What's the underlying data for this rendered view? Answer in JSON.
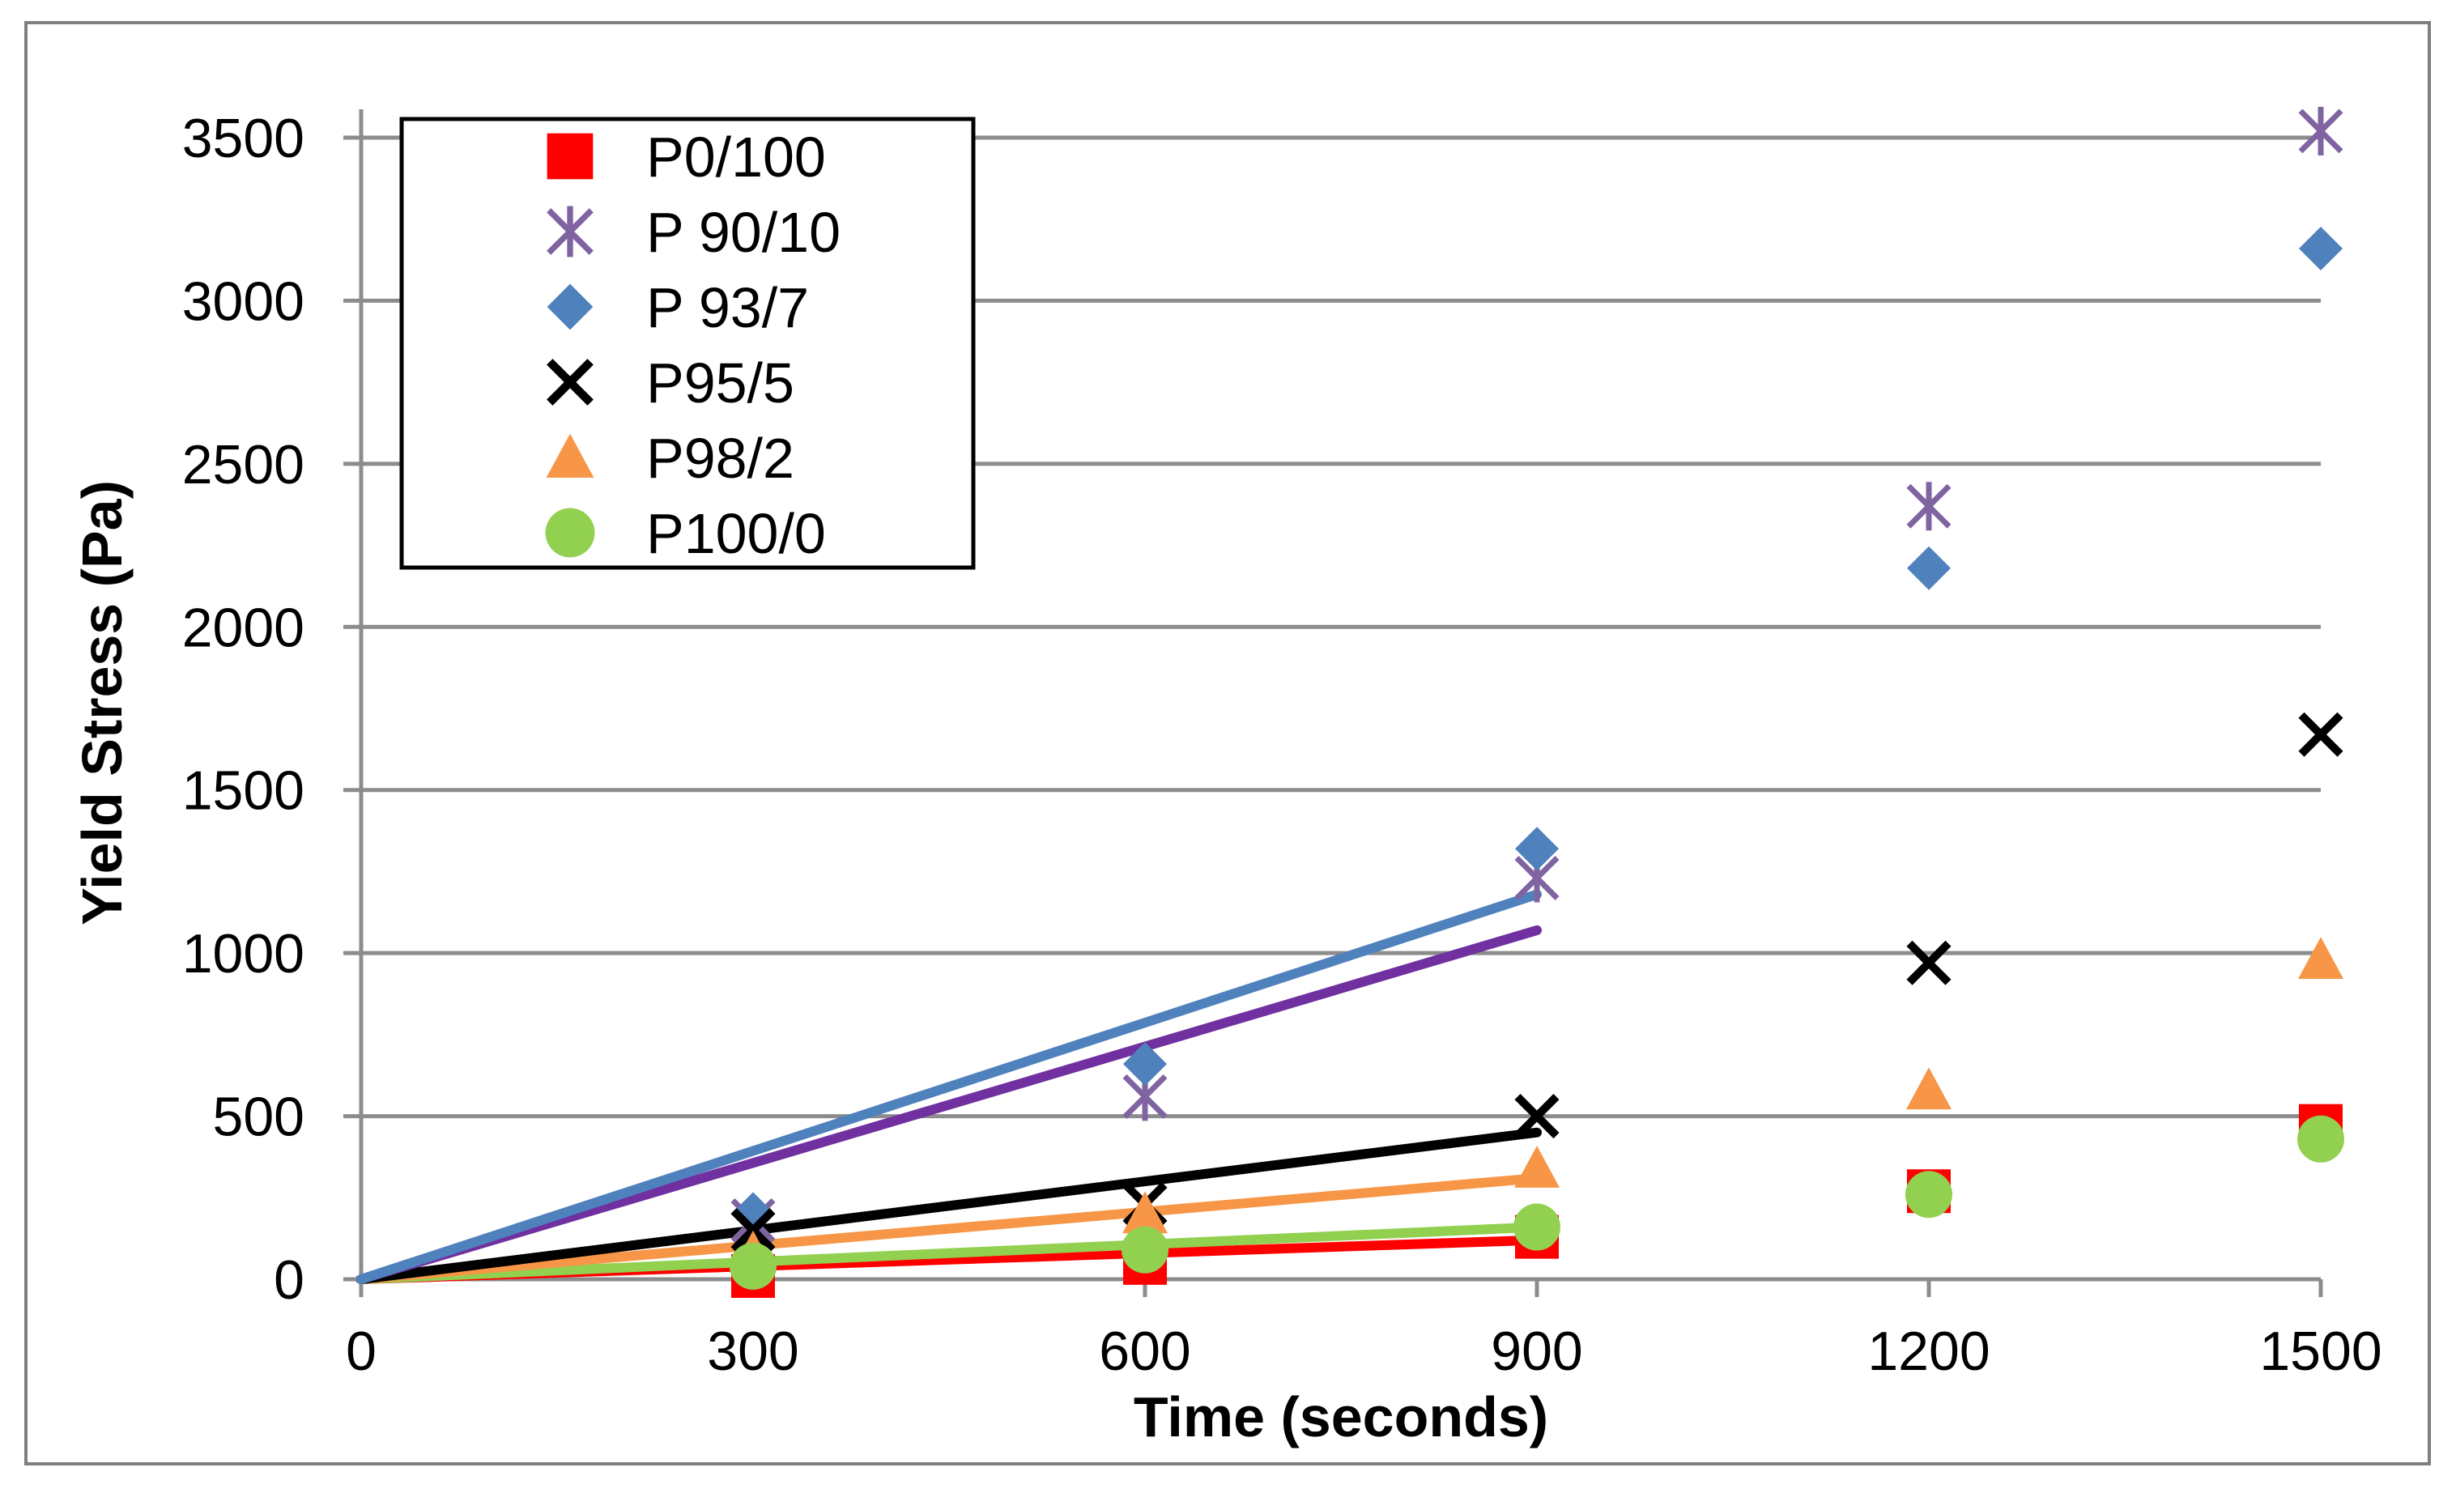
{
  "chart_data": {
    "type": "scatter",
    "title": "",
    "xlabel": "Time (seconds)",
    "ylabel": "Yield Stress (Pa)",
    "xlim": [
      0,
      1500
    ],
    "ylim": [
      0,
      3500
    ],
    "xticks": [
      0,
      300,
      600,
      900,
      1200,
      1500
    ],
    "yticks": [
      0,
      500,
      1000,
      1500,
      2000,
      2500,
      3000,
      3500
    ],
    "grid": "horizontal",
    "legend_position": "top-left",
    "series": [
      {
        "name": "P0/100",
        "marker": "square",
        "color": "#ff0000",
        "line_color": "#ff0000",
        "x": [
          300,
          600,
          900,
          1200,
          1500
        ],
        "values": [
          10,
          50,
          130,
          270,
          470
        ],
        "trend": {
          "x": [
            0,
            900
          ],
          "y": [
            0,
            120
          ]
        }
      },
      {
        "name": "P 90/10",
        "marker": "asterisk",
        "color": "#8064a2",
        "line_color": "#7030a0",
        "x": [
          300,
          600,
          900,
          1200,
          1500
        ],
        "values": [
          180,
          560,
          1230,
          2370,
          3520
        ],
        "trend": {
          "x": [
            0,
            900
          ],
          "y": [
            0,
            1070
          ]
        }
      },
      {
        "name": "P 93/7",
        "marker": "diamond",
        "color": "#4f81bd",
        "line_color": "#4f81bd",
        "x": [
          300,
          600,
          900,
          1200,
          1500
        ],
        "values": [
          200,
          660,
          1320,
          2180,
          3160
        ],
        "trend": {
          "x": [
            0,
            900
          ],
          "y": [
            0,
            1180
          ]
        }
      },
      {
        "name": "P95/5",
        "marker": "x",
        "color": "#000000",
        "line_color": "#000000",
        "x": [
          300,
          600,
          900,
          1200,
          1500
        ],
        "values": [
          150,
          230,
          500,
          970,
          1670
        ],
        "trend": {
          "x": [
            0,
            900
          ],
          "y": [
            0,
            450
          ]
        }
      },
      {
        "name": "P98/2",
        "marker": "triangle",
        "color": "#f79646",
        "line_color": "#f79646",
        "x": [
          300,
          600,
          900,
          1200,
          1500
        ],
        "values": [
          80,
          200,
          340,
          580,
          980
        ],
        "trend": {
          "x": [
            0,
            900
          ],
          "y": [
            0,
            310
          ]
        }
      },
      {
        "name": "P100/0",
        "marker": "circle",
        "color": "#92d050",
        "line_color": "#92d050",
        "x": [
          300,
          600,
          900,
          1200,
          1500
        ],
        "values": [
          40,
          90,
          160,
          260,
          430
        ],
        "trend": {
          "x": [
            0,
            900
          ],
          "y": [
            0,
            160
          ]
        }
      }
    ]
  }
}
